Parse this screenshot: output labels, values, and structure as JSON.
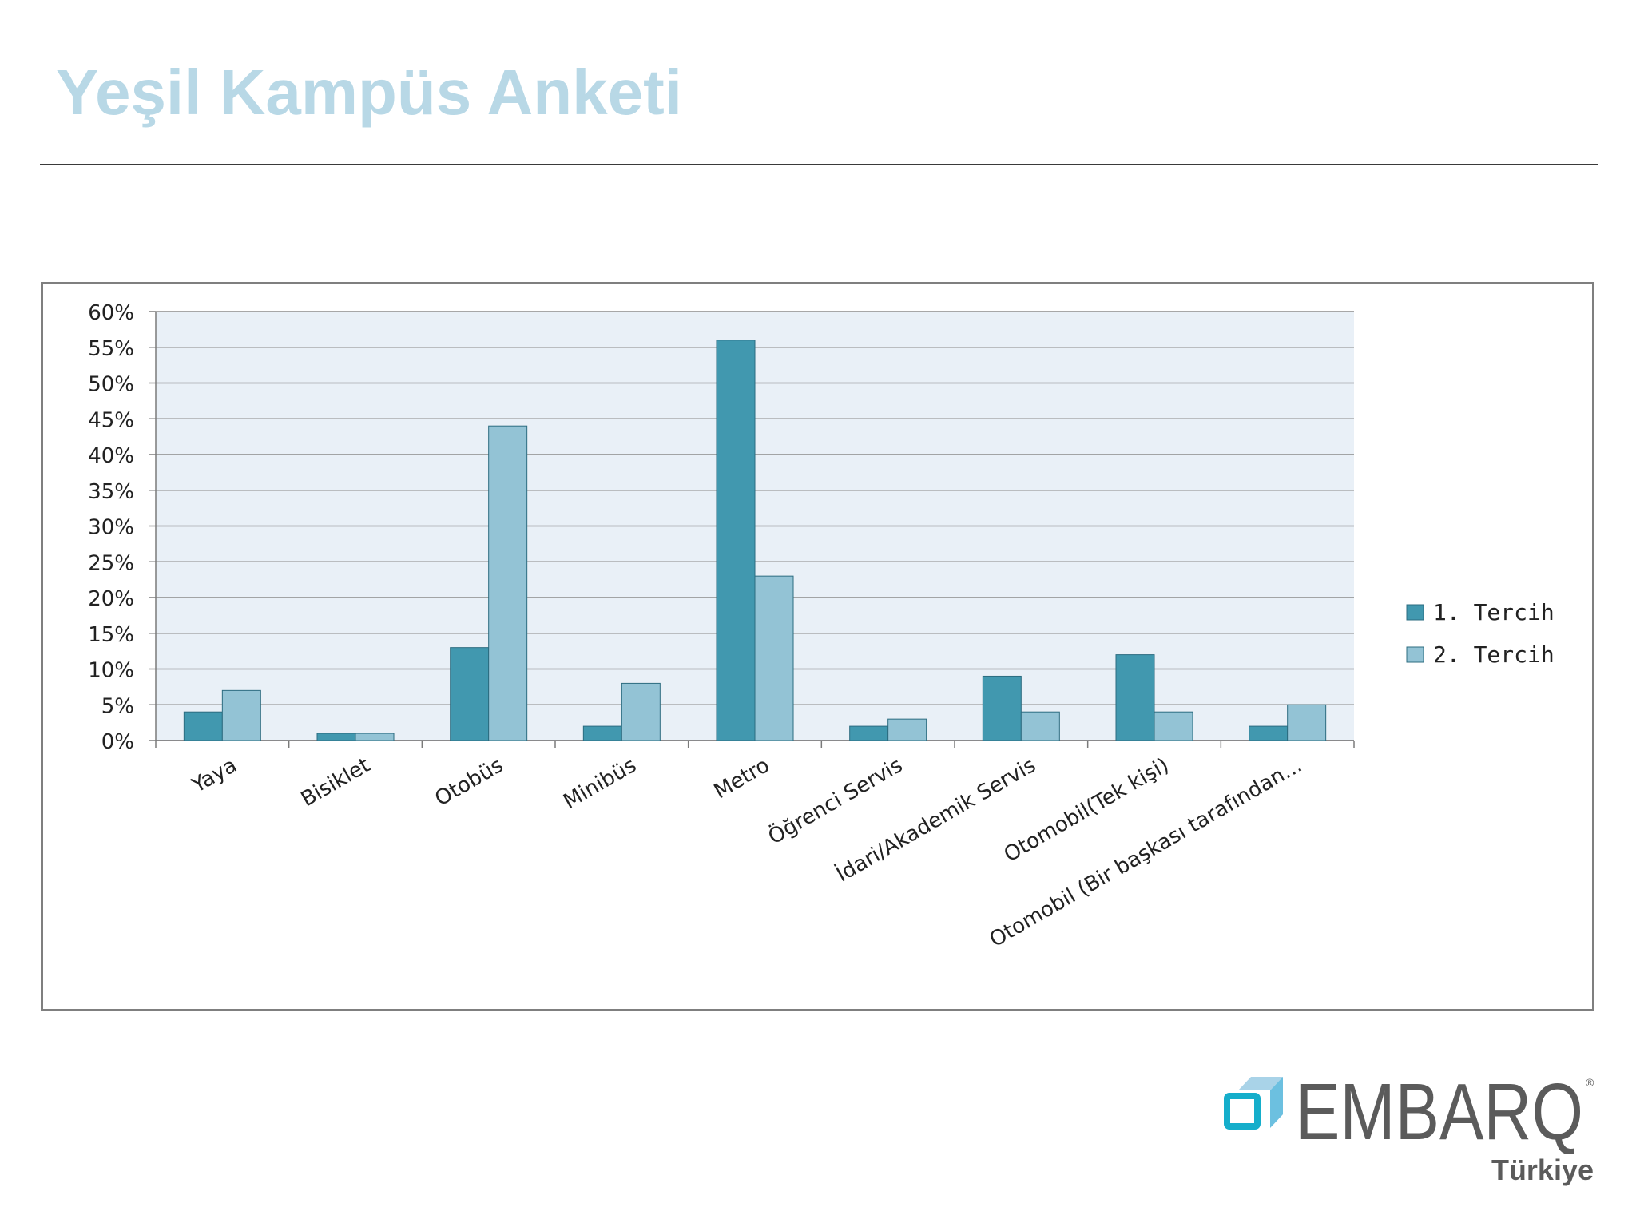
{
  "slide": {
    "title": "Yeşil Kampüs Anketi"
  },
  "chart_data": {
    "type": "bar",
    "categories": [
      "Yaya",
      "Bisiklet",
      "Otobüs",
      "Minibüs",
      "Metro",
      "Öğrenci Servis",
      "İdari/Akademik Servis",
      "Otomobil(Tek kişi)",
      "Otomobil (Bir başkası tarafından..."
    ],
    "series": [
      {
        "name": "1. Tercih",
        "values": [
          4,
          1,
          13,
          2,
          56,
          2,
          9,
          12,
          2
        ],
        "color": "#4198af"
      },
      {
        "name": "2. Tercih",
        "values": [
          7,
          1,
          44,
          8,
          23,
          3,
          4,
          4,
          5
        ],
        "color": "#93c3d5"
      }
    ],
    "ylim": [
      0,
      60
    ],
    "yticks": [
      0,
      5,
      10,
      15,
      20,
      25,
      30,
      35,
      40,
      45,
      50,
      55,
      60
    ],
    "ytick_suffix": "%",
    "grid": true,
    "legend_position": "right",
    "plot_background": "#e9f0f7"
  },
  "logo": {
    "brand": "EMBARQ",
    "subtitle": "Türkiye",
    "registered_mark": "®",
    "icon": "embarq-cube-icon"
  }
}
